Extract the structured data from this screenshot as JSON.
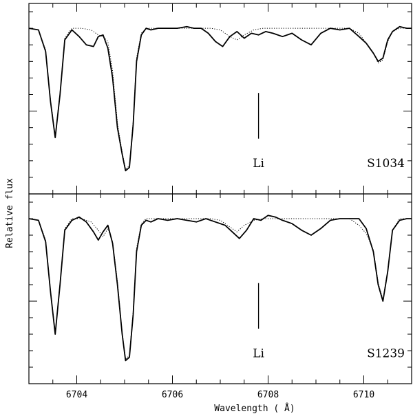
{
  "chart_data": {
    "type": "line",
    "xlabel": "Wavelength ( Å)",
    "ylabel": "Relative flux",
    "xlim": [
      6703,
      6711
    ],
    "xticks": [
      6704,
      6706,
      6708,
      6710
    ],
    "panels": [
      {
        "star": "S1034",
        "annotation": "Li",
        "marker_wavelength": 6707.8,
        "ylim": [
          0.0,
          1.15
        ],
        "series": [
          {
            "style": "solid",
            "x": [
              6703.0,
              6703.2,
              6703.35,
              6703.45,
              6703.55,
              6703.65,
              6703.75,
              6703.9,
              6704.05,
              6704.2,
              6704.35,
              6704.45,
              6704.55,
              6704.65,
              6704.75,
              6704.85,
              6704.95,
              6705.02,
              6705.1,
              6705.18,
              6705.25,
              6705.35,
              6705.45,
              6705.55,
              6705.7,
              6705.9,
              6706.1,
              6706.3,
              6706.45,
              6706.6,
              6706.75,
              6706.9,
              6707.05,
              6707.2,
              6707.35,
              6707.5,
              6707.65,
              6707.8,
              6707.95,
              6708.1,
              6708.3,
              6708.5,
              6708.7,
              6708.9,
              6709.1,
              6709.3,
              6709.5,
              6709.7,
              6709.9,
              6710.05,
              6710.2,
              6710.3,
              6710.4,
              6710.5,
              6710.6,
              6710.75,
              6710.9,
              6711.0
            ],
            "y": [
              1.0,
              0.99,
              0.86,
              0.56,
              0.34,
              0.6,
              0.93,
              0.99,
              0.95,
              0.9,
              0.89,
              0.95,
              0.96,
              0.88,
              0.7,
              0.4,
              0.24,
              0.14,
              0.16,
              0.42,
              0.8,
              0.96,
              1.0,
              0.99,
              1.0,
              1.0,
              1.0,
              1.01,
              1.0,
              1.0,
              0.97,
              0.92,
              0.89,
              0.95,
              0.98,
              0.94,
              0.97,
              0.96,
              0.98,
              0.97,
              0.95,
              0.97,
              0.93,
              0.9,
              0.97,
              1.0,
              0.99,
              1.0,
              0.95,
              0.91,
              0.85,
              0.8,
              0.82,
              0.93,
              0.98,
              1.01,
              1.0,
              1.0
            ]
          },
          {
            "style": "dotted",
            "x": [
              6703.0,
              6703.2,
              6703.35,
              6703.45,
              6703.55,
              6703.65,
              6703.75,
              6703.9,
              6704.1,
              6704.3,
              6704.45,
              6704.55,
              6704.65,
              6704.75,
              6704.85,
              6704.95,
              6705.02,
              6705.1,
              6705.18,
              6705.25,
              6705.35,
              6705.45,
              6705.6,
              6705.9,
              6706.2,
              6706.5,
              6706.8,
              6707.0,
              6707.2,
              6707.35,
              6707.5,
              6707.7,
              6707.9,
              6708.2,
              6708.5,
              6708.8,
              6709.1,
              6709.4,
              6709.7,
              6709.9,
              6710.05,
              6710.2,
              6710.3,
              6710.4,
              6710.5,
              6710.6,
              6710.75,
              6710.9,
              6711.0
            ],
            "y": [
              1.0,
              0.99,
              0.87,
              0.57,
              0.35,
              0.61,
              0.94,
              1.0,
              1.0,
              0.99,
              0.96,
              0.95,
              0.92,
              0.74,
              0.43,
              0.25,
              0.15,
              0.17,
              0.44,
              0.82,
              0.97,
              1.0,
              1.0,
              1.0,
              1.0,
              1.0,
              1.0,
              0.99,
              0.95,
              0.93,
              0.96,
              0.99,
              1.0,
              1.0,
              1.0,
              1.0,
              1.0,
              1.0,
              1.0,
              0.97,
              0.91,
              0.85,
              0.79,
              0.81,
              0.92,
              0.98,
              1.0,
              1.0,
              1.0
            ]
          }
        ]
      },
      {
        "star": "S1239",
        "annotation": "Li",
        "marker_wavelength": 6707.8,
        "ylim": [
          0.0,
          1.15
        ],
        "series": [
          {
            "style": "solid",
            "x": [
              6703.0,
              6703.2,
              6703.35,
              6703.45,
              6703.55,
              6703.65,
              6703.75,
              6703.9,
              6704.05,
              6704.2,
              6704.35,
              6704.45,
              6704.55,
              6704.65,
              6704.75,
              6704.85,
              6704.95,
              6705.02,
              6705.1,
              6705.18,
              6705.25,
              6705.35,
              6705.45,
              6705.55,
              6705.7,
              6705.9,
              6706.1,
              6706.3,
              6706.5,
              6706.7,
              6706.9,
              6707.1,
              6707.25,
              6707.4,
              6707.55,
              6707.7,
              6707.85,
              6708.0,
              6708.15,
              6708.3,
              6708.5,
              6708.7,
              6708.9,
              6709.1,
              6709.3,
              6709.5,
              6709.7,
              6709.9,
              6710.05,
              6710.2,
              6710.3,
              6710.4,
              6710.5,
              6710.6,
              6710.75,
              6710.9,
              6711.0
            ],
            "y": [
              1.0,
              0.99,
              0.86,
              0.56,
              0.3,
              0.6,
              0.93,
              0.99,
              1.01,
              0.98,
              0.92,
              0.87,
              0.92,
              0.96,
              0.85,
              0.6,
              0.3,
              0.14,
              0.16,
              0.42,
              0.8,
              0.96,
              0.99,
              0.98,
              1.0,
              0.99,
              1.0,
              0.99,
              0.98,
              1.0,
              0.98,
              0.96,
              0.92,
              0.88,
              0.93,
              1.0,
              0.99,
              1.02,
              1.01,
              0.99,
              0.97,
              0.93,
              0.9,
              0.94,
              0.99,
              1.0,
              1.0,
              1.0,
              0.94,
              0.8,
              0.6,
              0.5,
              0.68,
              0.93,
              0.99,
              1.0,
              1.0
            ]
          },
          {
            "style": "dotted",
            "x": [
              6703.0,
              6703.2,
              6703.35,
              6703.45,
              6703.55,
              6703.65,
              6703.75,
              6703.9,
              6704.1,
              6704.3,
              6704.45,
              6704.55,
              6704.65,
              6704.75,
              6704.85,
              6704.95,
              6705.02,
              6705.1,
              6705.18,
              6705.25,
              6705.35,
              6705.45,
              6705.6,
              6705.9,
              6706.2,
              6706.5,
              6706.8,
              6707.0,
              6707.2,
              6707.35,
              6707.5,
              6707.7,
              6707.9,
              6708.2,
              6708.5,
              6708.8,
              6709.1,
              6709.4,
              6709.7,
              6709.9,
              6710.05,
              6710.2,
              6710.3,
              6710.4,
              6710.5,
              6710.6,
              6710.75,
              6710.9,
              6711.0
            ],
            "y": [
              1.0,
              0.99,
              0.87,
              0.57,
              0.31,
              0.61,
              0.94,
              1.0,
              1.0,
              0.98,
              0.93,
              0.89,
              0.94,
              0.86,
              0.62,
              0.31,
              0.15,
              0.17,
              0.44,
              0.82,
              0.97,
              1.0,
              1.0,
              1.0,
              1.0,
              1.0,
              1.0,
              0.99,
              0.95,
              0.92,
              0.96,
              0.99,
              1.0,
              1.0,
              1.0,
              1.0,
              1.0,
              1.0,
              1.0,
              0.96,
              0.91,
              0.81,
              0.61,
              0.51,
              0.69,
              0.93,
              1.0,
              1.0,
              1.0
            ]
          }
        ]
      }
    ],
    "grid": false,
    "legend": "none",
    "colors": {
      "line": "#000000",
      "frame": "#000000",
      "background": "#ffffff"
    }
  }
}
